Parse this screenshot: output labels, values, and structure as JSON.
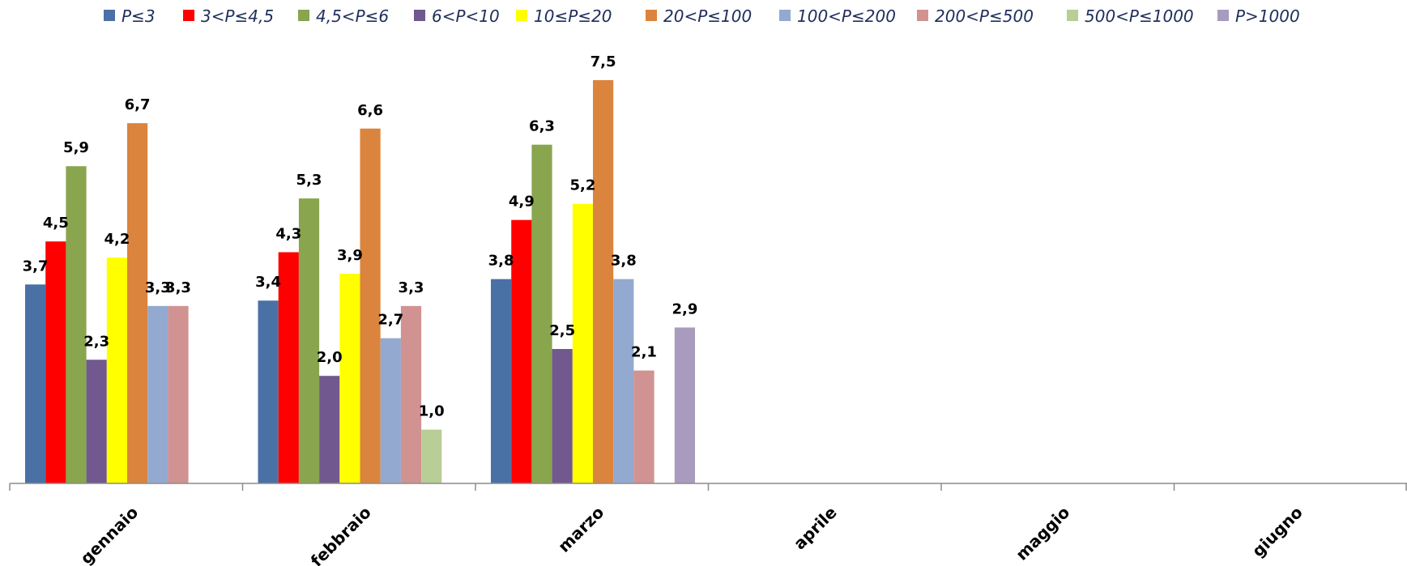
{
  "chart_data": {
    "type": "bar",
    "title": "",
    "xlabel": "",
    "ylabel": "",
    "ylim": [
      0,
      8
    ],
    "grid": false,
    "legend_position": "top",
    "categories": [
      "gennaio",
      "febbraio",
      "marzo",
      "aprile",
      "maggio",
      "giugno"
    ],
    "series": [
      {
        "name": "P≤3",
        "color": "#4a71a6",
        "values": [
          3.7,
          3.4,
          3.8,
          null,
          null,
          null
        ]
      },
      {
        "name": "3<P≤4,5",
        "color": "#ff0000",
        "values": [
          4.5,
          4.3,
          4.9,
          null,
          null,
          null
        ]
      },
      {
        "name": "4,5<P≤6",
        "color": "#89a54e",
        "values": [
          5.9,
          5.3,
          6.3,
          null,
          null,
          null
        ]
      },
      {
        "name": "6<P<10",
        "color": "#71588f",
        "values": [
          2.3,
          2.0,
          2.5,
          null,
          null,
          null
        ]
      },
      {
        "name": "10≤P≤20",
        "color": "#ffff00",
        "values": [
          4.2,
          3.9,
          5.2,
          null,
          null,
          null
        ]
      },
      {
        "name": "20<P≤100",
        "color": "#db843d",
        "values": [
          6.7,
          6.6,
          7.5,
          null,
          null,
          null
        ]
      },
      {
        "name": "100<P≤200",
        "color": "#93a9cf",
        "values": [
          3.3,
          2.7,
          3.8,
          null,
          null,
          null
        ]
      },
      {
        "name": "200<P≤500",
        "color": "#d19392",
        "values": [
          3.3,
          3.3,
          2.1,
          null,
          null,
          null
        ]
      },
      {
        "name": "500<P≤1000",
        "color": "#b9cd96",
        "values": [
          null,
          1.0,
          null,
          null,
          null,
          null
        ]
      },
      {
        "name": "P>1000",
        "color": "#a99bbd",
        "values": [
          null,
          null,
          2.9,
          null,
          null,
          null
        ]
      }
    ],
    "value_labels": [
      [
        "3,7",
        "4,5",
        "5,9",
        "2,3",
        "4,2",
        "6,7",
        "3,3",
        "3,3",
        null,
        null
      ],
      [
        "3,4",
        "4,3",
        "5,3",
        "2,0",
        "3,9",
        "6,6",
        "2,7",
        "3,3",
        "1,0",
        null
      ],
      [
        "3,8",
        "4,9",
        "6,3",
        "2,5",
        "5,2",
        "7,5",
        "3,8",
        "2,1",
        null,
        "2,9"
      ],
      [
        null,
        null,
        null,
        null,
        null,
        null,
        null,
        null,
        null,
        null
      ],
      [
        null,
        null,
        null,
        null,
        null,
        null,
        null,
        null,
        null,
        null
      ],
      [
        null,
        null,
        null,
        null,
        null,
        null,
        null,
        null,
        null,
        null
      ]
    ]
  }
}
